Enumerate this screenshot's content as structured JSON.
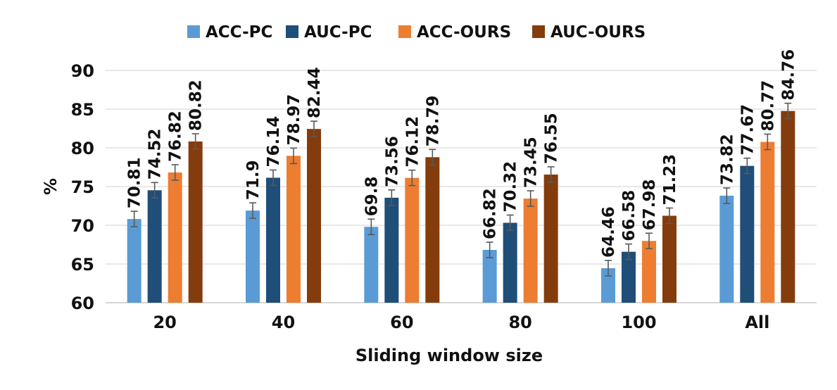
{
  "chart_data": {
    "type": "bar",
    "title": "",
    "xlabel": "Sliding window size",
    "ylabel": "%",
    "categories": [
      "20",
      "40",
      "60",
      "80",
      "100",
      "All"
    ],
    "ylim": [
      60,
      90
    ],
    "yticks": [
      60,
      65,
      70,
      75,
      80,
      85,
      90
    ],
    "grid": true,
    "legend_position": "top",
    "error_bars": true,
    "series": [
      {
        "name": "ACC-PC",
        "color": "#5B9BD5",
        "values": [
          70.81,
          71.9,
          69.8,
          66.82,
          64.46,
          73.82
        ],
        "labels": [
          "70.81",
          "71.9",
          "69.8",
          "66.82",
          "64.46",
          "73.82"
        ]
      },
      {
        "name": "AUC-PC",
        "color": "#1F4E79",
        "values": [
          74.52,
          76.14,
          73.56,
          70.32,
          66.58,
          77.67
        ],
        "labels": [
          "74.52",
          "76.14",
          "73.56",
          "70.32",
          "66.58",
          "77.67"
        ]
      },
      {
        "name": "ACC-OURS",
        "color": "#ED7D31",
        "values": [
          76.82,
          78.97,
          76.12,
          73.45,
          67.98,
          80.77
        ],
        "labels": [
          "76.82",
          "78.97",
          "76.12",
          "73.45",
          "67.98",
          "80.77"
        ]
      },
      {
        "name": "AUC-OURS",
        "color": "#843C0C",
        "values": [
          80.82,
          82.44,
          78.79,
          76.55,
          71.23,
          84.76
        ],
        "labels": [
          "80.82",
          "82.44",
          "78.79",
          "76.55",
          "71.23",
          "84.76"
        ]
      }
    ]
  }
}
